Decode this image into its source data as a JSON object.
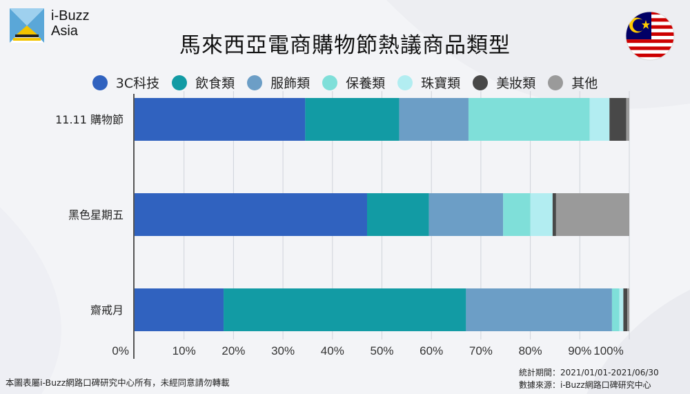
{
  "logo": {
    "line1": "i-Buzz",
    "line2": "Asia"
  },
  "title": "馬來西亞電商購物節熱議商品類型",
  "footer": {
    "copyright": "本圖表屬i-Buzz網路口碑研究中心所有，未經同意請勿轉載",
    "period": "統計期間：2021/01/01-2021/06/30",
    "source": "數據來源：i-Buzz網路口碑研究中心"
  },
  "chart_data": {
    "type": "bar",
    "orientation": "horizontal",
    "stacked": true,
    "normalized": true,
    "categories": [
      "11.11 購物節",
      "黑色星期五",
      "齋戒月"
    ],
    "series": [
      {
        "name": "3C科技",
        "color": "#3062bf",
        "values": [
          34.5,
          47,
          18
        ]
      },
      {
        "name": "飲食類",
        "color": "#129ba4",
        "values": [
          19,
          12.5,
          49
        ]
      },
      {
        "name": "服飾類",
        "color": "#6c9ec6",
        "values": [
          14,
          15,
          29.5
        ]
      },
      {
        "name": "保養類",
        "color": "#7fdfd9",
        "values": [
          24.5,
          5.5,
          1.5
        ]
      },
      {
        "name": "珠寶類",
        "color": "#b2edf1",
        "values": [
          4,
          4.5,
          0.8
        ]
      },
      {
        "name": "美妝類",
        "color": "#484848",
        "values": [
          3.4,
          0.7,
          0.8
        ]
      },
      {
        "name": "其他",
        "color": "#9a9a9a",
        "values": [
          0.6,
          14.8,
          0.4
        ]
      }
    ],
    "x_ticks": [
      "0%",
      "10%",
      "20%",
      "30%",
      "40%",
      "50%",
      "60%",
      "70%",
      "80%",
      "90%",
      "100%"
    ],
    "xlim": [
      0,
      100
    ],
    "grid": true,
    "legend_position": "top"
  }
}
